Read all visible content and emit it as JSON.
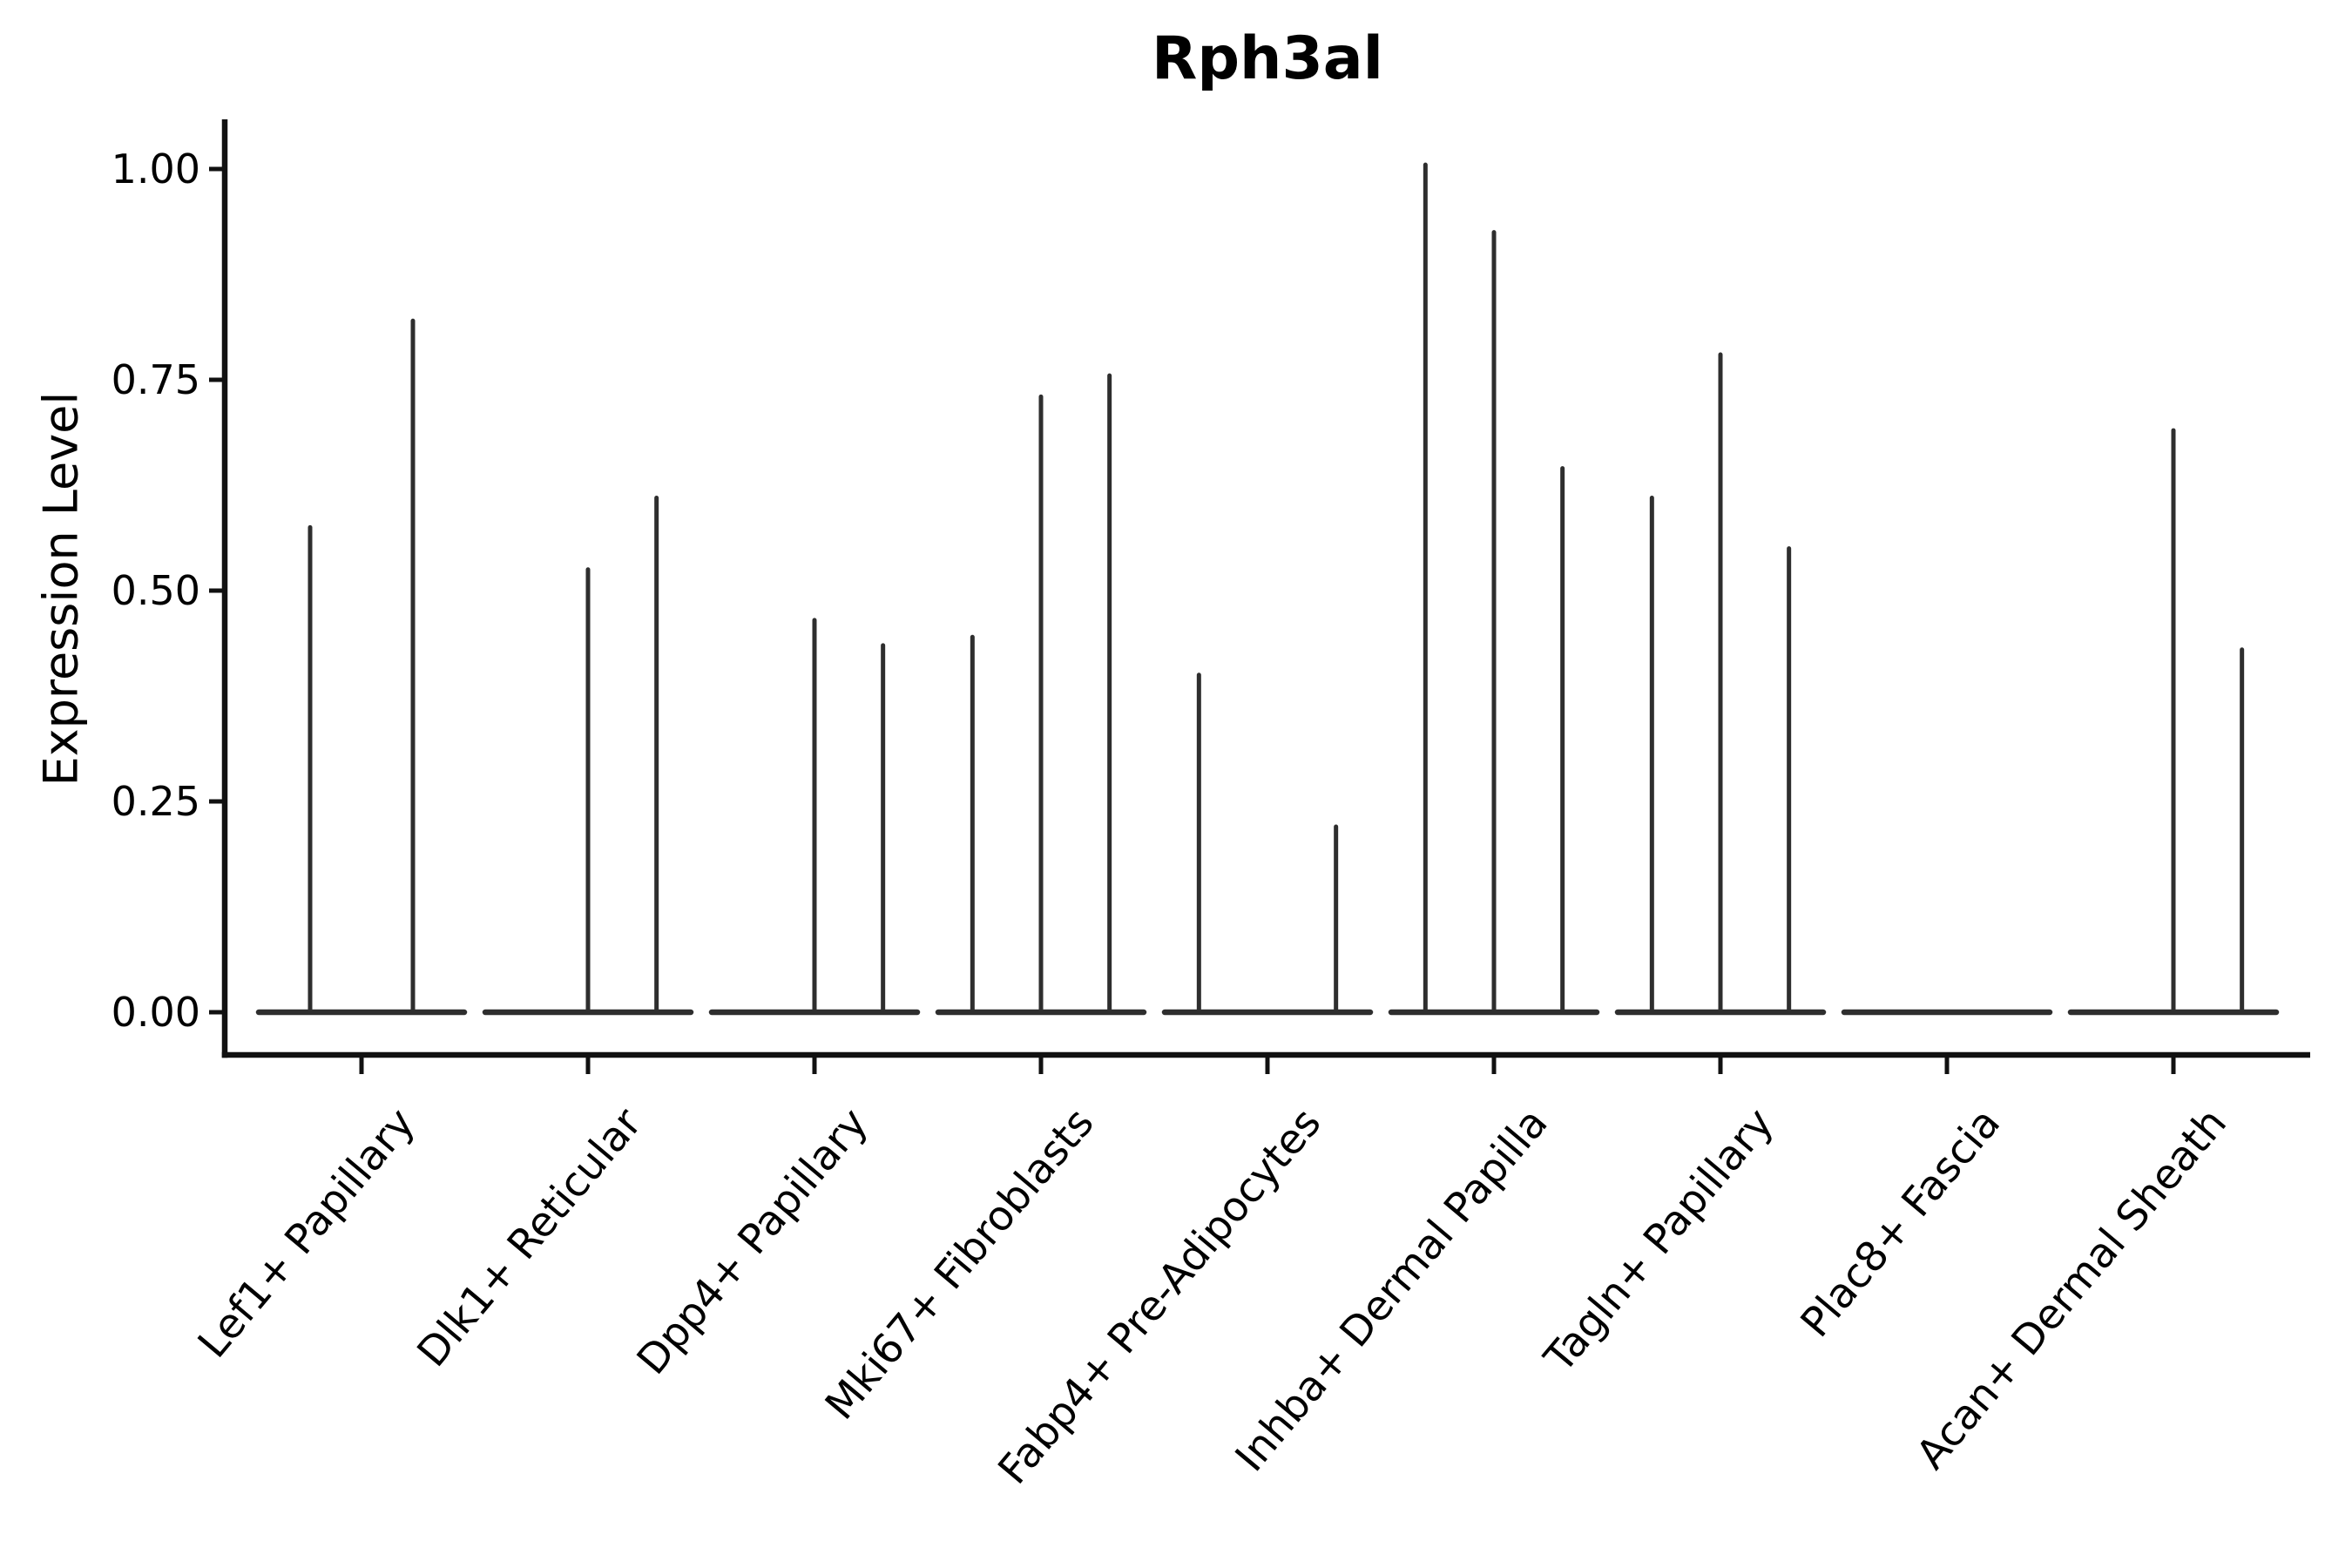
{
  "chart_data": {
    "type": "violin",
    "title": "Rph3al",
    "ylabel": "Expression Level",
    "xlabel": "",
    "ylim": [
      -0.05,
      1.06
    ],
    "grid": false,
    "legend": "none",
    "yticks": [
      0,
      0.25,
      0.5,
      0.75,
      1.0
    ],
    "ytick_labels": [
      "0.00",
      "0.25",
      "0.50",
      "0.75",
      "1.00"
    ],
    "x_tick_rotation_deg": 50,
    "categories": [
      "Lef1+ Papillary",
      "Dlk1+ Reticular",
      "Dpp4+ Papillary",
      "Mki67+ Fibroblasts",
      "Fabp4+ Pre-Adipocytes",
      "Inhba+ Dermal Papilla",
      "Tagln+ Papillary",
      "Plac8+ Fascia",
      "Acan+ Dermal Sheath"
    ],
    "series": [
      {
        "category": "Lef1+ Papillary",
        "violin_peaks": [
          0.575,
          0.82
        ]
      },
      {
        "category": "Dlk1+ Reticular",
        "violin_peaks": [
          0,
          0.525,
          0.61
        ]
      },
      {
        "category": "Dpp4+ Papillary",
        "violin_peaks": [
          0,
          0.465,
          0.435
        ]
      },
      {
        "category": "Mki67+ Fibroblasts",
        "violin_peaks": [
          0.445,
          0.73,
          0.755
        ]
      },
      {
        "category": "Fabp4+ Pre-Adipocytes",
        "violin_peaks": [
          0.4,
          0,
          0.22
        ]
      },
      {
        "category": "Inhba+ Dermal Papilla",
        "violin_peaks": [
          1.005,
          0.925,
          0.645
        ]
      },
      {
        "category": "Tagln+ Papillary",
        "violin_peaks": [
          0.61,
          0.78,
          0.55
        ]
      },
      {
        "category": "Plac8+ Fascia",
        "violin_peaks": [
          0,
          0,
          0
        ]
      },
      {
        "category": "Acan+ Dermal Sheath",
        "violin_peaks": [
          0,
          0.69,
          0.43
        ]
      }
    ],
    "colors": {
      "violin": "#2e2e2e",
      "axis": "#111111",
      "text": "#000000",
      "background": "#ffffff"
    }
  }
}
